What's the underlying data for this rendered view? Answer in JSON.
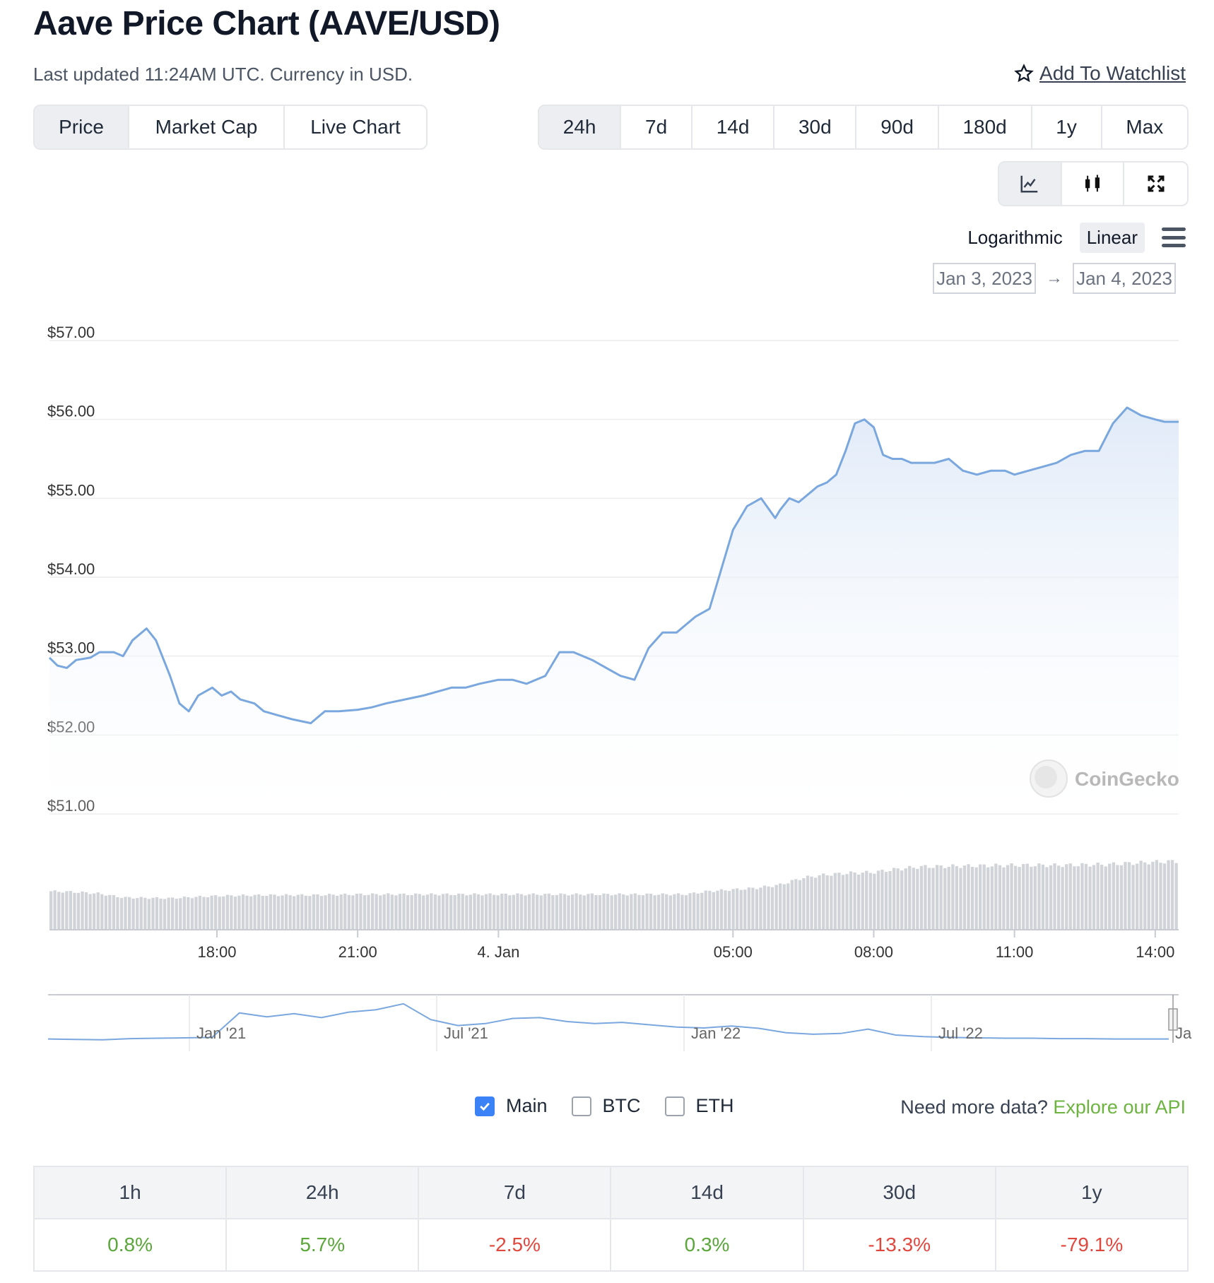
{
  "header": {
    "title": "Aave Price Chart (AAVE/USD)",
    "subtitle": "Last updated 11:24AM UTC. Currency in USD.",
    "watchlist_label": "Add To Watchlist"
  },
  "chart_tabs": [
    "Price",
    "Market Cap",
    "Live Chart"
  ],
  "active_chart_tab": "Price",
  "ranges": [
    "24h",
    "7d",
    "14d",
    "30d",
    "90d",
    "180d",
    "1y",
    "Max"
  ],
  "active_range": "24h",
  "view_icons": [
    "line-chart-icon",
    "candlestick-icon",
    "fullscreen-icon"
  ],
  "scale": {
    "options": [
      "Logarithmic",
      "Linear"
    ],
    "active": "Linear"
  },
  "date_range": {
    "from": "Jan 3, 2023",
    "to": "Jan 4, 2023"
  },
  "watermark": "CoinGecko",
  "colors": {
    "line": "#7aa7de",
    "volume": "#d0d3d8",
    "positive": "#5aa63a",
    "negative": "#e0483e"
  },
  "chart_data": {
    "type": "line",
    "y_axis": {
      "ticks": [
        "$57.00",
        "$56.00",
        "$55.00",
        "$54.00",
        "$53.00",
        "$52.00",
        "$51.00"
      ],
      "ylim": [
        51,
        57
      ]
    },
    "x_axis": {
      "ticks": [
        {
          "label": "18:00",
          "hour": 18
        },
        {
          "label": "21:00",
          "hour": 21
        },
        {
          "label": "4. Jan",
          "hour": 24
        },
        {
          "label": "05:00",
          "hour": 29
        },
        {
          "label": "08:00",
          "hour": 32
        },
        {
          "label": "11:00",
          "hour": 35
        },
        {
          "label": "14:00",
          "hour": 38
        }
      ],
      "xlim": [
        14.43,
        38.5
      ]
    },
    "series": [
      {
        "hours": [
          14.43,
          14.6,
          14.8,
          15.0,
          15.3,
          15.5,
          15.8,
          16.0,
          16.2,
          16.5,
          16.7,
          17.0,
          17.2,
          17.4,
          17.6,
          17.9,
          18.1,
          18.3,
          18.5,
          18.8,
          19.0,
          19.3,
          19.6,
          20.0,
          20.3,
          20.6,
          21.0,
          21.3,
          21.6,
          22.0,
          22.4,
          22.7,
          23.0,
          23.3,
          23.6,
          24.0,
          24.3,
          24.6,
          25.0,
          25.3,
          25.6,
          26.0,
          26.3,
          26.6,
          26.9,
          27.2,
          27.5,
          27.8,
          28.0,
          28.2,
          28.5,
          28.8,
          29.0,
          29.3,
          29.6,
          29.9,
          30.0,
          30.2,
          30.4,
          30.6,
          30.8,
          31.0,
          31.2,
          31.4,
          31.6,
          31.8,
          32.0,
          32.2,
          32.4,
          32.6,
          32.8,
          33.0,
          33.3,
          33.6,
          33.9,
          34.2,
          34.5,
          34.8,
          35.0,
          35.3,
          35.6,
          35.9,
          36.2,
          36.5,
          36.8,
          37.1,
          37.4,
          37.7,
          38.0,
          38.2,
          38.5
        ],
        "values": [
          52.98,
          52.88,
          52.85,
          52.95,
          52.98,
          53.05,
          53.05,
          53.0,
          53.2,
          53.35,
          53.2,
          52.75,
          52.4,
          52.3,
          52.5,
          52.6,
          52.5,
          52.55,
          52.45,
          52.4,
          52.3,
          52.25,
          52.2,
          52.15,
          52.3,
          52.3,
          52.32,
          52.35,
          52.4,
          52.45,
          52.5,
          52.55,
          52.6,
          52.6,
          52.65,
          52.7,
          52.7,
          52.65,
          52.75,
          53.05,
          53.05,
          52.95,
          52.85,
          52.75,
          52.7,
          53.1,
          53.3,
          53.3,
          53.4,
          53.5,
          53.6,
          54.2,
          54.6,
          54.9,
          55.0,
          54.75,
          54.85,
          55.0,
          54.95,
          55.05,
          55.15,
          55.2,
          55.3,
          55.6,
          55.95,
          56.0,
          55.9,
          55.55,
          55.5,
          55.5,
          55.45,
          55.45,
          55.45,
          55.5,
          55.35,
          55.3,
          55.35,
          55.35,
          55.3,
          55.35,
          55.4,
          55.45,
          55.55,
          55.6,
          55.6,
          55.95,
          56.15,
          56.05,
          56.0,
          55.97,
          55.97
        ]
      }
    ],
    "volume": {
      "hours": [
        14.43,
        15.0,
        15.5,
        16.0,
        17.0,
        18.0,
        19.0,
        20.0,
        21.0,
        22.0,
        23.0,
        24.0,
        25.0,
        26.0,
        27.0,
        28.0,
        28.5,
        29.0,
        29.5,
        30.0,
        30.5,
        31.0,
        31.5,
        32.0,
        32.5,
        33.0,
        34.0,
        35.0,
        36.0,
        37.0,
        38.0,
        38.5
      ],
      "relative": [
        0.48,
        0.47,
        0.45,
        0.4,
        0.39,
        0.42,
        0.43,
        0.43,
        0.44,
        0.44,
        0.44,
        0.44,
        0.44,
        0.44,
        0.44,
        0.44,
        0.48,
        0.5,
        0.52,
        0.56,
        0.65,
        0.69,
        0.71,
        0.72,
        0.76,
        0.79,
        0.8,
        0.81,
        0.81,
        0.82,
        0.85,
        0.86
      ]
    },
    "navigator": {
      "x_labels": [
        "Jan '21",
        "Jul '21",
        "Jan '22",
        "Jul '22",
        "Ja"
      ],
      "relative_values": [
        0.06,
        0.05,
        0.04,
        0.07,
        0.08,
        0.09,
        0.1,
        0.72,
        0.62,
        0.7,
        0.6,
        0.74,
        0.8,
        0.95,
        0.55,
        0.4,
        0.45,
        0.58,
        0.6,
        0.5,
        0.45,
        0.48,
        0.42,
        0.36,
        0.34,
        0.39,
        0.33,
        0.22,
        0.18,
        0.2,
        0.31,
        0.16,
        0.12,
        0.1,
        0.09,
        0.08,
        0.08,
        0.07,
        0.07,
        0.06,
        0.06,
        0.06
      ]
    }
  },
  "legend": {
    "items": [
      {
        "label": "Main",
        "checked": true
      },
      {
        "label": "BTC",
        "checked": false
      },
      {
        "label": "ETH",
        "checked": false
      }
    ]
  },
  "api_note": {
    "text": "Need more data?",
    "link": "Explore our API"
  },
  "changes": {
    "headers": [
      "1h",
      "24h",
      "7d",
      "14d",
      "30d",
      "1y"
    ],
    "values": [
      "0.8%",
      "5.7%",
      "-2.5%",
      "0.3%",
      "-13.3%",
      "-79.1%"
    ]
  }
}
